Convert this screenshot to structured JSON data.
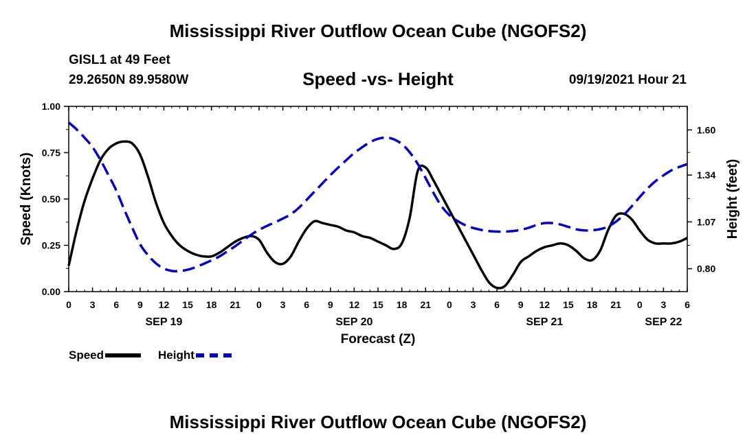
{
  "header": {
    "title": "Mississippi River Outflow Ocean Cube (NGOFS2)",
    "station": "GISL1 at 49 Feet",
    "coords": "29.2650N  89.9580W",
    "subtitle": "Speed -vs- Height",
    "datetime": "09/19/2021 Hour 21"
  },
  "footer": {
    "title": "Mississippi River Outflow Ocean Cube (NGOFS2)"
  },
  "legend": {
    "speed": "Speed",
    "height": "Height"
  },
  "colors": {
    "speed": "#000000",
    "height": "#0000cc"
  },
  "chart_data": {
    "type": "line",
    "title": "Speed -vs- Height",
    "xlabel": "Forecast (Z)",
    "ylabel": "Speed (Knots)",
    "y2label": "Height (feet)",
    "x_unit": "hours from 0Z Sep 19",
    "xlim": [
      0,
      78
    ],
    "ylim": [
      0,
      1.0
    ],
    "y2lim": [
      0.668,
      1.736
    ],
    "x_ticks": [
      {
        "hour": 0,
        "label": "0"
      },
      {
        "hour": 3,
        "label": "3"
      },
      {
        "hour": 6,
        "label": "6"
      },
      {
        "hour": 9,
        "label": "9"
      },
      {
        "hour": 12,
        "label": "12"
      },
      {
        "hour": 15,
        "label": "15"
      },
      {
        "hour": 18,
        "label": "18"
      },
      {
        "hour": 21,
        "label": "21"
      },
      {
        "hour": 24,
        "label": "0"
      },
      {
        "hour": 27,
        "label": "3"
      },
      {
        "hour": 30,
        "label": "6"
      },
      {
        "hour": 33,
        "label": "9"
      },
      {
        "hour": 36,
        "label": "12"
      },
      {
        "hour": 39,
        "label": "15"
      },
      {
        "hour": 42,
        "label": "18"
      },
      {
        "hour": 45,
        "label": "21"
      },
      {
        "hour": 48,
        "label": "0"
      },
      {
        "hour": 51,
        "label": "3"
      },
      {
        "hour": 54,
        "label": "6"
      },
      {
        "hour": 57,
        "label": "9"
      },
      {
        "hour": 60,
        "label": "12"
      },
      {
        "hour": 63,
        "label": "15"
      },
      {
        "hour": 66,
        "label": "18"
      },
      {
        "hour": 69,
        "label": "21"
      },
      {
        "hour": 72,
        "label": "0"
      },
      {
        "hour": 75,
        "label": "3"
      },
      {
        "hour": 78,
        "label": "6"
      }
    ],
    "date_labels": [
      {
        "hour": 12,
        "label": "SEP 19"
      },
      {
        "hour": 36,
        "label": "SEP 20"
      },
      {
        "hour": 60,
        "label": "SEP 21"
      },
      {
        "hour": 75,
        "label": "SEP 22"
      }
    ],
    "y_ticks": [
      {
        "value": 0.0,
        "label": "0.00"
      },
      {
        "value": 0.25,
        "label": "0.25"
      },
      {
        "value": 0.5,
        "label": "0.50"
      },
      {
        "value": 0.75,
        "label": "0.75"
      },
      {
        "value": 1.0,
        "label": "1.00"
      }
    ],
    "y2_ticks": [
      {
        "value": 0.8,
        "label": "0.80"
      },
      {
        "value": 1.07,
        "label": "1.07"
      },
      {
        "value": 1.34,
        "label": "1.34"
      },
      {
        "value": 1.6,
        "label": "1.60"
      }
    ],
    "series": [
      {
        "name": "Speed",
        "axis": "left",
        "style": "solid",
        "x": [
          0,
          1,
          2,
          3,
          4,
          5,
          6,
          7,
          8,
          9,
          10,
          11,
          12,
          13,
          14,
          15,
          16,
          17,
          18,
          19,
          20,
          21,
          22,
          23,
          24,
          25,
          26,
          27,
          28,
          29,
          30,
          31,
          32,
          33,
          34,
          35,
          36,
          37,
          38,
          39,
          40,
          41,
          42,
          43,
          44,
          45,
          46,
          47,
          48,
          49,
          50,
          51,
          52,
          53,
          54,
          55,
          56,
          57,
          58,
          59,
          60,
          61,
          62,
          63,
          64,
          65,
          66,
          67,
          68,
          69,
          70,
          71,
          72,
          73,
          74,
          75,
          76,
          77,
          78
        ],
        "values": [
          0.14,
          0.33,
          0.49,
          0.61,
          0.71,
          0.77,
          0.8,
          0.81,
          0.8,
          0.74,
          0.62,
          0.48,
          0.37,
          0.3,
          0.25,
          0.22,
          0.2,
          0.19,
          0.19,
          0.21,
          0.24,
          0.27,
          0.29,
          0.3,
          0.28,
          0.21,
          0.16,
          0.15,
          0.19,
          0.27,
          0.34,
          0.38,
          0.37,
          0.36,
          0.35,
          0.33,
          0.32,
          0.3,
          0.29,
          0.27,
          0.25,
          0.23,
          0.26,
          0.4,
          0.65,
          0.67,
          0.6,
          0.52,
          0.44,
          0.36,
          0.28,
          0.2,
          0.12,
          0.05,
          0.02,
          0.03,
          0.09,
          0.16,
          0.19,
          0.22,
          0.24,
          0.25,
          0.26,
          0.25,
          0.22,
          0.18,
          0.17,
          0.22,
          0.33,
          0.41,
          0.42,
          0.39,
          0.33,
          0.28,
          0.26,
          0.26,
          0.26,
          0.27,
          0.29
        ]
      },
      {
        "name": "Height",
        "axis": "right",
        "style": "dashed",
        "x": [
          0,
          1,
          2,
          3,
          4,
          5,
          6,
          7,
          8,
          9,
          10,
          11,
          12,
          13,
          14,
          15,
          16,
          17,
          18,
          19,
          20,
          21,
          22,
          23,
          24,
          25,
          26,
          27,
          28,
          29,
          30,
          31,
          32,
          33,
          34,
          35,
          36,
          37,
          38,
          39,
          40,
          41,
          42,
          43,
          44,
          45,
          46,
          47,
          48,
          49,
          50,
          51,
          52,
          53,
          54,
          55,
          56,
          57,
          58,
          59,
          60,
          61,
          62,
          63,
          64,
          65,
          66,
          67,
          68,
          69,
          70,
          71,
          72,
          73,
          74,
          75,
          76,
          77,
          78
        ],
        "values": [
          1.643,
          1.603,
          1.555,
          1.501,
          1.427,
          1.341,
          1.251,
          1.141,
          1.037,
          0.941,
          0.878,
          0.831,
          0.801,
          0.787,
          0.787,
          0.794,
          0.809,
          0.828,
          0.848,
          0.871,
          0.9,
          0.93,
          0.963,
          0.996,
          1.024,
          1.047,
          1.067,
          1.089,
          1.114,
          1.15,
          1.197,
          1.245,
          1.292,
          1.34,
          1.384,
          1.426,
          1.467,
          1.5,
          1.53,
          1.549,
          1.556,
          1.546,
          1.519,
          1.471,
          1.405,
          1.323,
          1.237,
          1.161,
          1.109,
          1.076,
          1.051,
          1.035,
          1.024,
          1.017,
          1.014,
          1.014,
          1.017,
          1.024,
          1.036,
          1.052,
          1.063,
          1.063,
          1.055,
          1.041,
          1.027,
          1.021,
          1.022,
          1.028,
          1.043,
          1.071,
          1.111,
          1.16,
          1.213,
          1.263,
          1.305,
          1.338,
          1.367,
          1.387,
          1.403
        ]
      }
    ]
  }
}
